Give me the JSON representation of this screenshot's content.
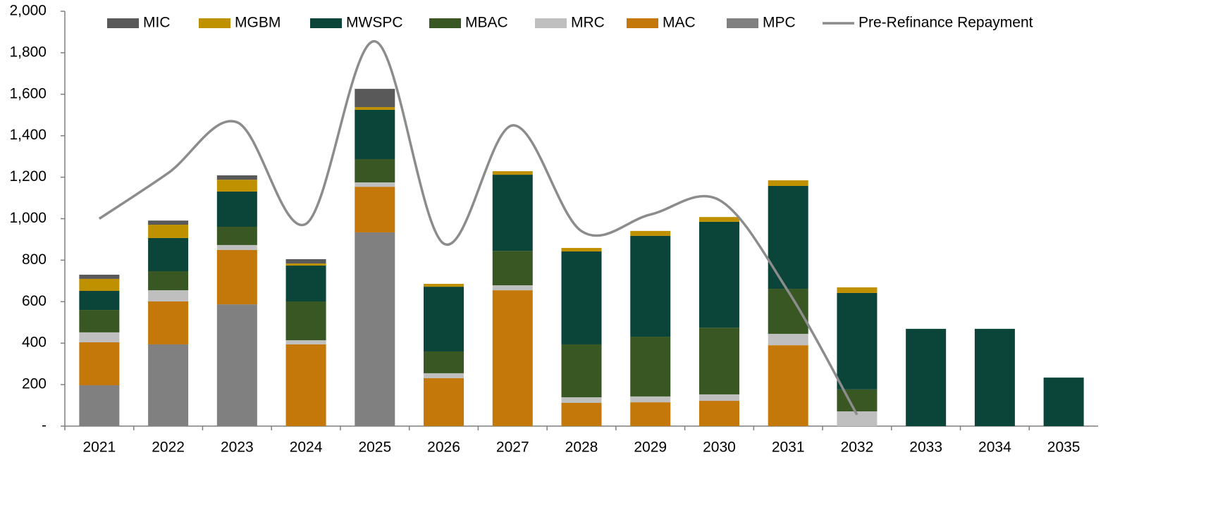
{
  "chart_data": {
    "type": "bar",
    "stacked": true,
    "categories": [
      "2021",
      "2022",
      "2023",
      "2024",
      "2025",
      "2026",
      "2027",
      "2028",
      "2029",
      "2030",
      "2031",
      "2032",
      "2033",
      "2034",
      "2035"
    ],
    "series": [
      {
        "name": "MIC",
        "color": "#595959",
        "values": [
          20,
          20,
          21,
          21,
          88,
          0,
          0,
          0,
          0,
          0,
          0,
          0,
          0,
          0,
          0
        ]
      },
      {
        "name": "MGBM",
        "color": "#bf9000",
        "values": [
          58,
          64,
          57,
          10,
          13,
          14,
          17,
          17,
          24,
          23,
          27,
          27,
          0,
          0,
          0
        ]
      },
      {
        "name": "MWSPC",
        "color": "#0b453a",
        "values": [
          92,
          160,
          170,
          173,
          238,
          312,
          367,
          448,
          486,
          510,
          496,
          465,
          469,
          469,
          234
        ]
      },
      {
        "name": "MBAC",
        "color": "#385723",
        "values": [
          108,
          92,
          88,
          187,
          112,
          105,
          166,
          255,
          288,
          322,
          217,
          106,
          0,
          0,
          0
        ]
      },
      {
        "name": "MRC",
        "color": "#bfbfbf",
        "values": [
          48,
          54,
          24,
          20,
          21,
          24,
          24,
          27,
          28,
          31,
          55,
          71,
          0,
          0,
          0
        ]
      },
      {
        "name": "MAC",
        "color": "#c5780a",
        "values": [
          207,
          207,
          262,
          394,
          220,
          231,
          655,
          112,
          115,
          122,
          390,
          0,
          0,
          0,
          0
        ]
      },
      {
        "name": "MPC",
        "color": "#808080",
        "values": [
          197,
          394,
          587,
          0,
          934,
          0,
          0,
          0,
          0,
          0,
          0,
          0,
          0,
          0,
          0
        ]
      },
      {
        "name": "Pre-Refinance Repayment",
        "type": "line",
        "color": "#8c8c8c",
        "values": [
          1000,
          1220,
          1465,
          975,
          1855,
          880,
          1450,
          940,
          1020,
          1090,
          650,
          55,
          null,
          null,
          null
        ]
      }
    ],
    "ylim": [
      0,
      2000
    ],
    "yticks": [
      {
        "value": 0,
        "label": "-"
      },
      200,
      400,
      600,
      800,
      {
        "value": 1000,
        "label": "1,000"
      },
      {
        "value": 1200,
        "label": "1,200"
      },
      {
        "value": 1400,
        "label": "1,400"
      },
      {
        "value": 1600,
        "label": "1,600"
      },
      {
        "value": 1800,
        "label": "1,800"
      },
      {
        "value": 2000,
        "label": "2,000"
      }
    ],
    "grid": false,
    "legend": "top"
  }
}
